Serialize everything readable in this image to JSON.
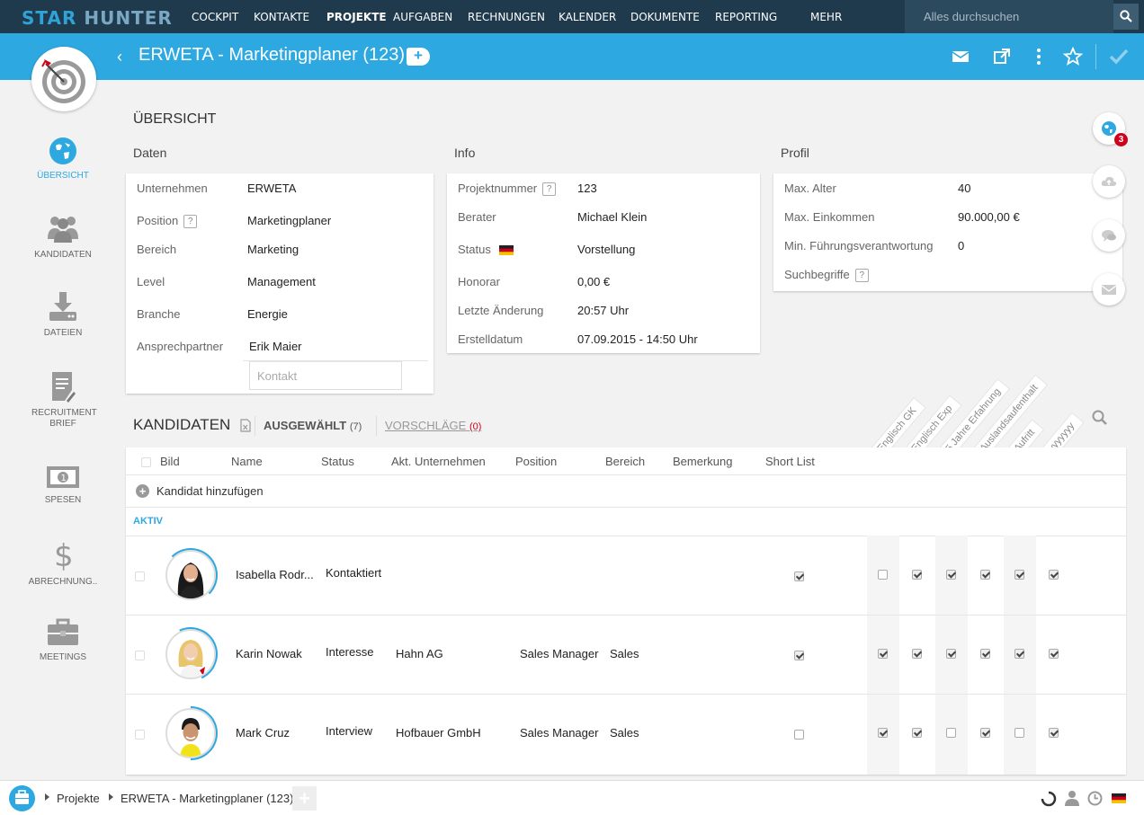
{
  "app": {
    "logo_left": "STAR",
    "logo_right": "HUNTER"
  },
  "nav": {
    "items": [
      "COCKPIT",
      "KONTAKTE",
      "PROJEKTE",
      "AUFGABEN",
      "RECHNUNGEN",
      "KALENDER",
      "DOKUMENTE",
      "REPORTING",
      "MEHR"
    ],
    "active": "PROJEKTE",
    "search_placeholder": "Alles durchsuchen"
  },
  "header": {
    "title": "ERWETA - Marketingplaner (123)"
  },
  "sidebar": {
    "items": [
      {
        "label": "ÜBERSICHT",
        "icon": "globe-icon",
        "active": true
      },
      {
        "label": "KANDIDATEN",
        "icon": "people-icon"
      },
      {
        "label": "DATEIEN",
        "icon": "download-icon"
      },
      {
        "label": "RECRUITMENT BRIEF",
        "icon": "document-icon"
      },
      {
        "label": "SPESEN",
        "icon": "banknote-icon"
      },
      {
        "label": "ABRECHNUNG..",
        "icon": "dollar-icon"
      },
      {
        "label": "MEETINGS",
        "icon": "briefcase-icon"
      }
    ]
  },
  "overview": {
    "title": "ÜBERSICHT",
    "daten": {
      "title": "Daten",
      "rows": [
        {
          "label": "Unternehmen",
          "value": "ERWETA"
        },
        {
          "label": "Position",
          "value": "Marketingplaner",
          "help": "?"
        },
        {
          "label": "Bereich",
          "value": "Marketing"
        },
        {
          "label": "Level",
          "value": "Management"
        },
        {
          "label": "Branche",
          "value": "Energie"
        },
        {
          "label": "Ansprechpartner",
          "value": "Erik Maier"
        }
      ],
      "contact_placeholder": "Kontakt"
    },
    "info": {
      "title": "Info",
      "rows": [
        {
          "label": "Projektnummer",
          "value": "123",
          "help": "?"
        },
        {
          "label": "Berater",
          "value": "Michael Klein"
        },
        {
          "label": "Status",
          "value": "Vorstellung"
        },
        {
          "label": "Honorar",
          "value": "0,00 €"
        },
        {
          "label": "Letzte Änderung",
          "value": "20:57 Uhr"
        },
        {
          "label": "Erstelldatum",
          "value": "07.09.2015 - 14:50 Uhr"
        }
      ]
    },
    "profil": {
      "title": "Profil",
      "rows": [
        {
          "label": "Max. Alter",
          "value": "40"
        },
        {
          "label": "Max. Einkommen",
          "value": "90.000,00 €"
        },
        {
          "label": "Min. Führungsverantwortung",
          "value": "0"
        },
        {
          "label": "Suchbegriffe",
          "value": "",
          "help": "?"
        }
      ]
    },
    "notification_count": "3"
  },
  "candidates": {
    "title": "KANDIDATEN",
    "tab_selected": "AUSGEWÄHLT",
    "tab_selected_count": "(7)",
    "tab_suggestions": "VORSCHLÄGE",
    "tab_suggestions_count": "(0)",
    "columns": [
      "Bild",
      "Name",
      "Status",
      "Akt. Unternehmen",
      "Position",
      "Bereich",
      "Bemerkung",
      "Short List"
    ],
    "rotated_columns": [
      "Englisch GK",
      "Englisch Exp",
      "5 Jahre Erfahrung",
      "Auslandsaufenthalt",
      "Aufritt",
      "yyyyyyy"
    ],
    "add_label": "Kandidat hinzufügen",
    "group_label": "AKTIV",
    "rows": [
      {
        "name": "Isabella Rodr...",
        "status": "Kontaktiert",
        "company": "",
        "position": "",
        "area": "",
        "shortlist": true,
        "criteria": [
          false,
          true,
          true,
          true,
          true,
          true
        ],
        "progress": 0.25
      },
      {
        "name": "Karin Nowak",
        "status": "Interesse",
        "company": "Hahn AG",
        "position": "Sales Manager",
        "area": "Sales",
        "shortlist": true,
        "criteria": [
          true,
          true,
          true,
          true,
          true,
          true
        ],
        "progress": 0.35
      },
      {
        "name": "Mark Cruz",
        "status": "Interview",
        "company": "Hofbauer GmbH",
        "position": "Sales Manager",
        "area": "Sales",
        "shortlist": false,
        "criteria": [
          true,
          true,
          false,
          true,
          false,
          true
        ],
        "progress": 0.5
      }
    ]
  },
  "footer": {
    "crumb1": "Projekte",
    "crumb2": "ERWETA - Marketingplaner (123)"
  }
}
